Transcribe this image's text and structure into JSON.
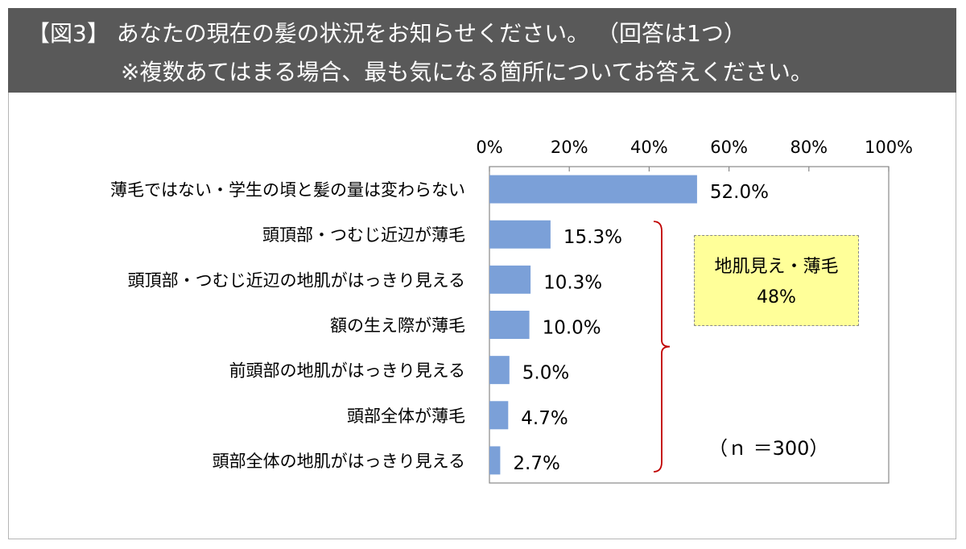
{
  "header": {
    "line1": "【図3】 あなたの現在の髪の状況をお知らせください。 （回答は1つ）",
    "line2": "※複数あてはまる場合、最も気になる箇所についてお答えください。"
  },
  "chart_data": {
    "type": "bar",
    "orientation": "horizontal",
    "categories": [
      "薄毛ではない・学生の頃と髪の量は変わらない",
      "頭頂部・つむじ近辺が薄毛",
      "頭頂部・つむじ近辺の地肌がはっきり見える",
      "額の生え際が薄毛",
      "前頭部の地肌がはっきり見える",
      "頭部全体が薄毛",
      "頭部全体の地肌がはっきり見える"
    ],
    "values": [
      52.0,
      15.3,
      10.3,
      10.0,
      5.0,
      4.7,
      2.7
    ],
    "value_labels": [
      "52.0%",
      "15.3%",
      "10.3%",
      "10.0%",
      "5.0%",
      "4.7%",
      "2.7%"
    ],
    "xlim": [
      0,
      100
    ],
    "x_ticks": [
      0,
      20,
      40,
      60,
      80,
      100
    ],
    "x_tick_labels": [
      "0%",
      "20%",
      "40%",
      "60%",
      "80%",
      "100%"
    ],
    "axis_position": "top",
    "grid": false,
    "bar_color": "#7ba0d8",
    "bracket_color": "#c00000",
    "callout": {
      "line1": "地肌見え・薄毛",
      "line2": "48%",
      "background": "#ffff99"
    },
    "sample_note": "（ｎ ＝300）"
  }
}
